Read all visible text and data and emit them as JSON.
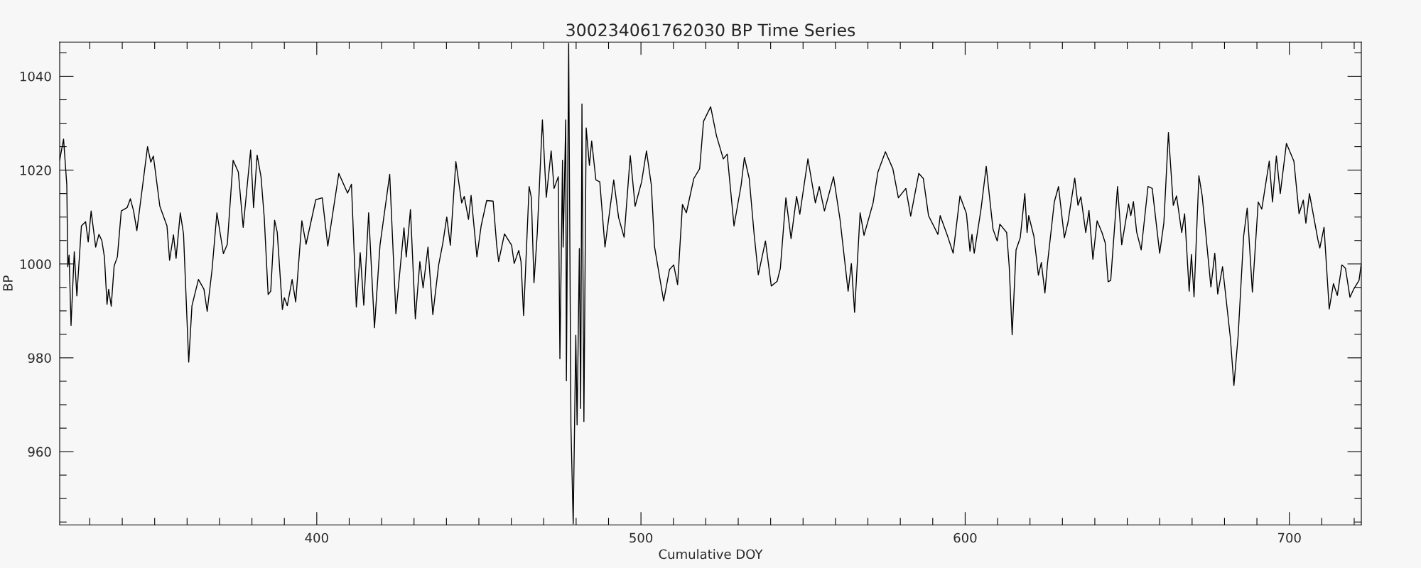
{
  "chart_data": {
    "type": "line",
    "title": "300234061762030 BP Time Series",
    "xlabel": "Cumulative DOY",
    "ylabel": "BP",
    "xlim": [
      320.7,
      722.2
    ],
    "ylim": [
      944.4,
      1047.3
    ],
    "xticks": [
      {
        "value": 330,
        "label": null
      },
      {
        "value": 340,
        "label": null
      },
      {
        "value": 350,
        "label": null
      },
      {
        "value": 360,
        "label": null
      },
      {
        "value": 370,
        "label": null
      },
      {
        "value": 380,
        "label": null
      },
      {
        "value": 390,
        "label": null
      },
      400,
      {
        "value": 410,
        "label": null
      },
      {
        "value": 420,
        "label": null
      },
      {
        "value": 430,
        "label": null
      },
      {
        "value": 440,
        "label": null
      },
      {
        "value": 450,
        "label": null
      },
      {
        "value": 460,
        "label": null
      },
      {
        "value": 470,
        "label": null
      },
      {
        "value": 480,
        "label": null
      },
      {
        "value": 490,
        "label": null
      },
      500,
      {
        "value": 510,
        "label": null
      },
      {
        "value": 520,
        "label": null
      },
      {
        "value": 530,
        "label": null
      },
      {
        "value": 540,
        "label": null
      },
      {
        "value": 550,
        "label": null
      },
      {
        "value": 560,
        "label": null
      },
      {
        "value": 570,
        "label": null
      },
      {
        "value": 580,
        "label": null
      },
      {
        "value": 590,
        "label": null
      },
      600,
      {
        "value": 610,
        "label": null
      },
      {
        "value": 620,
        "label": null
      },
      {
        "value": 630,
        "label": null
      },
      {
        "value": 640,
        "label": null
      },
      {
        "value": 650,
        "label": null
      },
      {
        "value": 660,
        "label": null
      },
      {
        "value": 670,
        "label": null
      },
      {
        "value": 680,
        "label": null
      },
      {
        "value": 690,
        "label": null
      },
      700,
      {
        "value": 710,
        "label": null
      },
      {
        "value": 720,
        "label": null
      }
    ],
    "yticks": [
      {
        "value": 945,
        "label": null
      },
      {
        "value": 950,
        "label": null
      },
      {
        "value": 955,
        "label": null
      },
      960,
      {
        "value": 965,
        "label": null
      },
      {
        "value": 970,
        "label": null
      },
      {
        "value": 975,
        "label": null
      },
      980,
      {
        "value": 985,
        "label": null
      },
      {
        "value": 990,
        "label": null
      },
      {
        "value": 995,
        "label": null
      },
      1000,
      {
        "value": 1005,
        "label": null
      },
      {
        "value": 1010,
        "label": null
      },
      {
        "value": 1015,
        "label": null
      },
      1020,
      {
        "value": 1025,
        "label": null
      },
      {
        "value": 1030,
        "label": null
      },
      {
        "value": 1035,
        "label": null
      },
      1040,
      {
        "value": 1045,
        "label": null
      }
    ],
    "grid": false,
    "legend": false,
    "series": [
      {
        "color": "#000000",
        "x": [
          320.7,
          321.9,
          322.9,
          323.2,
          323.6,
          324.2,
          325.2,
          326.0,
          327.4,
          328.7,
          329.5,
          330.4,
          331.8,
          332.8,
          333.7,
          334.5,
          335.3,
          335.8,
          336.6,
          337.5,
          338.5,
          339.7,
          341.5,
          342.5,
          343.5,
          344.5,
          346.3,
          347.8,
          348.8,
          349.6,
          351.6,
          353.8,
          354.6,
          355.8,
          356.6,
          357.9,
          358.9,
          360.5,
          361.5,
          363.5,
          365.2,
          366.2,
          367.7,
          369.2,
          371.2,
          372.4,
          374.2,
          375.8,
          377.3,
          379.6,
          380.5,
          381.6,
          382.8,
          383.8,
          385.0,
          385.8,
          387.0,
          387.8,
          389.4,
          390.0,
          390.9,
          392.4,
          393.5,
          395.4,
          396.7,
          399.7,
          401.7,
          403.4,
          406.8,
          409.5,
          410.7,
          412.2,
          413.4,
          414.5,
          416.0,
          417.8,
          419.5,
          422.5,
          424.4,
          426.9,
          427.6,
          428.9,
          430.4,
          431.8,
          432.8,
          434.3,
          435.8,
          437.6,
          438.9,
          440.1,
          441.2,
          442.9,
          444.7,
          445.5,
          446.8,
          447.6,
          449.4,
          450.7,
          452.4,
          454.4,
          455.5,
          456.1,
          457.9,
          460.1,
          460.9,
          462.3,
          463.0,
          463.8,
          465.5,
          466.2,
          467.0,
          468.0,
          469.6,
          470.8,
          472.3,
          473.2,
          474.5,
          475.0,
          475.8,
          476.0,
          476.8,
          477.0,
          477.7,
          478.4,
          479.1,
          479.9,
          480.3,
          481.0,
          481.4,
          481.8,
          482.4,
          483.1,
          484.1,
          484.8,
          486.1,
          487.3,
          488.9,
          491.6,
          493.1,
          494.8,
          496.7,
          498.2,
          500.2,
          501.7,
          503.2,
          504.2,
          507.0,
          508.8,
          510.1,
          511.3,
          512.8,
          514.0,
          516.3,
          518.1,
          519.3,
          521.5,
          523.3,
          525.4,
          526.6,
          528.7,
          530.9,
          531.9,
          533.4,
          534.9,
          536.2,
          538.4,
          540.2,
          542.0,
          543.0,
          544.7,
          546.3,
          548.0,
          549.0,
          551.5,
          553.8,
          555.0,
          556.6,
          559.4,
          561.4,
          563.9,
          564.9,
          565.9,
          567.6,
          568.8,
          571.6,
          573.1,
          575.4,
          577.7,
          579.4,
          581.7,
          583.2,
          585.7,
          587.1,
          588.7,
          591.6,
          592.3,
          594.4,
          596.3,
          598.4,
          600.4,
          601.5,
          602.1,
          602.8,
          604.9,
          606.5,
          608.6,
          609.9,
          610.7,
          612.8,
          613.6,
          614.5,
          615.7,
          617.0,
          618.4,
          619.1,
          619.6,
          621.2,
          622.6,
          623.5,
          624.6,
          625.4,
          627.5,
          628.8,
          630.6,
          631.7,
          633.8,
          634.8,
          635.7,
          637.2,
          638.2,
          639.4,
          640.7,
          642.2,
          643.2,
          644.1,
          644.9,
          647.0,
          648.3,
          650.4,
          651.1,
          651.9,
          652.9,
          654.3,
          656.4,
          657.7,
          660.0,
          661.3,
          662.7,
          664.2,
          665.2,
          666.8,
          667.7,
          669.1,
          669.8,
          670.6,
          672.1,
          673.1,
          675.8,
          677.0,
          677.9,
          679.4,
          681.8,
          682.9,
          684.2,
          685.9,
          687.0,
          688.6,
          690.4,
          691.5,
          693.8,
          694.8,
          696.0,
          697.2,
          699.1,
          701.4,
          703.0,
          704.3,
          705.1,
          706.2,
          708.8,
          709.4,
          710.7,
          712.3,
          713.6,
          714.8,
          716.2,
          717.3,
          718.7,
          719.9,
          721.5,
          722.2
        ],
        "values": [
          1022.1,
          1026.6,
          1016.8,
          999.4,
          1001.9,
          986.9,
          1002.6,
          993.2,
          1008.1,
          1009.0,
          1004.7,
          1011.3,
          1003.6,
          1006.3,
          1005.0,
          1001.5,
          991.4,
          994.6,
          991.0,
          999.6,
          1001.5,
          1011.3,
          1012.0,
          1013.9,
          1011.3,
          1007.1,
          1016.8,
          1025.0,
          1021.7,
          1023.0,
          1012.3,
          1008.1,
          1000.8,
          1006.2,
          1001.2,
          1010.9,
          1006.4,
          979.1,
          991.1,
          996.7,
          994.6,
          989.9,
          998.8,
          1010.9,
          1002.2,
          1004.2,
          1022.1,
          1019.6,
          1007.8,
          1024.3,
          1012.0,
          1023.2,
          1018.6,
          1009.9,
          993.5,
          994.2,
          1009.3,
          1006.8,
          990.3,
          992.8,
          991.1,
          996.7,
          991.9,
          1009.2,
          1004.2,
          1013.7,
          1014.1,
          1003.8,
          1019.3,
          1015.1,
          1017.0,
          990.8,
          1002.4,
          991.2,
          1010.9,
          986.4,
          1004.0,
          1019.1,
          989.4,
          1007.7,
          1001.5,
          1011.6,
          988.3,
          1000.5,
          994.9,
          1003.6,
          989.2,
          999.8,
          1004.5,
          1010.0,
          1004.0,
          1021.8,
          1013.0,
          1014.4,
          1009.5,
          1014.6,
          1001.5,
          1008.1,
          1013.5,
          1013.4,
          1004.0,
          1000.5,
          1006.4,
          1004.0,
          1000.1,
          1002.9,
          1000.5,
          989.0,
          1016.5,
          1014.1,
          996.0,
          1006.4,
          1030.7,
          1014.2,
          1024.1,
          1016.1,
          1018.6,
          979.8,
          1022.1,
          1003.6,
          1030.7,
          975.1,
          1047.0,
          965.4,
          944.6,
          984.8,
          965.7,
          1003.3,
          969.2,
          1034.1,
          966.4,
          1029.0,
          1021.0,
          1026.2,
          1017.9,
          1017.5,
          1003.6,
          1017.9,
          1009.9,
          1005.7,
          1023.1,
          1012.3,
          1017.5,
          1024.1,
          1016.8,
          1003.6,
          992.1,
          998.8,
          999.8,
          995.6,
          1012.7,
          1010.9,
          1018.2,
          1020.3,
          1030.4,
          1033.5,
          1027.3,
          1022.4,
          1023.4,
          1008.1,
          1016.8,
          1022.7,
          1018.2,
          1006.4,
          997.7,
          1004.9,
          995.3,
          996.3,
          999.1,
          1014.1,
          1005.4,
          1014.4,
          1010.6,
          1022.4,
          1013.0,
          1016.5,
          1011.3,
          1018.6,
          1009.5,
          994.2,
          1000.1,
          989.7,
          1010.9,
          1006.1,
          1013.0,
          1019.6,
          1023.9,
          1020.3,
          1014.1,
          1016.1,
          1010.2,
          1019.3,
          1018.2,
          1010.3,
          1006.3,
          1010.3,
          1006.3,
          1002.3,
          1014.5,
          1010.7,
          1002.7,
          1006.3,
          1002.3,
          1011.7,
          1020.8,
          1007.4,
          1004.9,
          1008.5,
          1006.7,
          999.4,
          984.9,
          1003.0,
          1005.6,
          1015.0,
          1006.7,
          1010.3,
          1005.9,
          997.6,
          1000.3,
          993.8,
          1000.1,
          1013.2,
          1016.5,
          1005.6,
          1008.8,
          1018.3,
          1012.5,
          1014.3,
          1006.7,
          1011.4,
          1001.0,
          1009.2,
          1006.7,
          1004.5,
          996.2,
          996.5,
          1016.5,
          1004.1,
          1012.8,
          1010.3,
          1013.3,
          1006.8,
          1003.0,
          1016.5,
          1016.1,
          1002.3,
          1008.8,
          1028.0,
          1012.5,
          1014.5,
          1006.7,
          1010.7,
          994.2,
          1002.0,
          993.0,
          1018.8,
          1014.6,
          995.1,
          1002.3,
          993.6,
          999.4,
          984.3,
          974.1,
          984.6,
          1005.9,
          1011.9,
          994.0,
          1013.2,
          1011.7,
          1021.9,
          1013.2,
          1023.0,
          1015.0,
          1025.7,
          1021.9,
          1010.7,
          1013.6,
          1008.7,
          1015.0,
          1005.2,
          1003.4,
          1007.8,
          990.4,
          995.8,
          993.3,
          999.8,
          999.1,
          992.9,
          994.7,
          996.5,
          1000.1
        ]
      }
    ]
  }
}
